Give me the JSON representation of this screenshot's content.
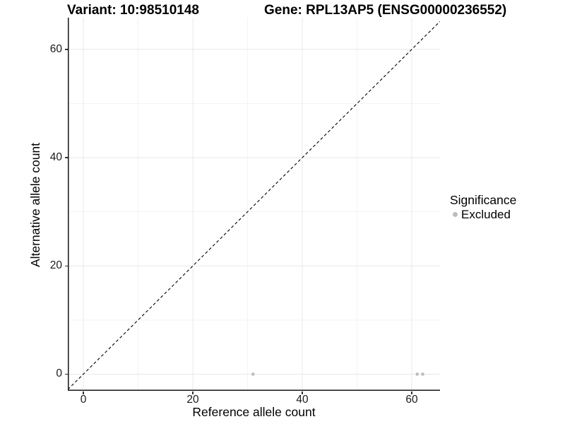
{
  "chart_data": {
    "type": "scatter",
    "title_left": "Variant: 10:98510148",
    "title_right": "Gene: RPL13AP5 (ENSG00000236552)",
    "xlabel": "Reference allele count",
    "ylabel": "Alternative allele count",
    "x_axis": {
      "ticks": [
        0,
        20,
        40,
        60
      ],
      "minor_ticks": [
        10,
        30,
        50
      ],
      "range": [
        -2.84,
        65.16
      ]
    },
    "y_axis": {
      "ticks": [
        0,
        20,
        40,
        60
      ],
      "minor_ticks": [
        10,
        30,
        50
      ],
      "range": [
        -3.07,
        65.86
      ]
    },
    "grid": true,
    "legend_position": "right",
    "series": [
      {
        "name": "Excluded",
        "color": "#bdbdbd",
        "points": [
          {
            "x": 31,
            "y": 0
          },
          {
            "x": 61,
            "y": 0
          },
          {
            "x": 62,
            "y": 0
          }
        ]
      }
    ],
    "reference_line": {
      "type": "identity",
      "style": "dashed",
      "color": "#000000"
    },
    "legend": {
      "title": "Significance",
      "entries": [
        {
          "label": "Excluded",
          "color": "#bdbdbd"
        }
      ]
    },
    "colors": {
      "background": "#ffffff",
      "grid_major": "#e8e8e8",
      "grid_minor": "#f3f3f3",
      "axis_line": "#141414",
      "tick_mark": "#333333",
      "point": "#bdbdbd"
    }
  }
}
